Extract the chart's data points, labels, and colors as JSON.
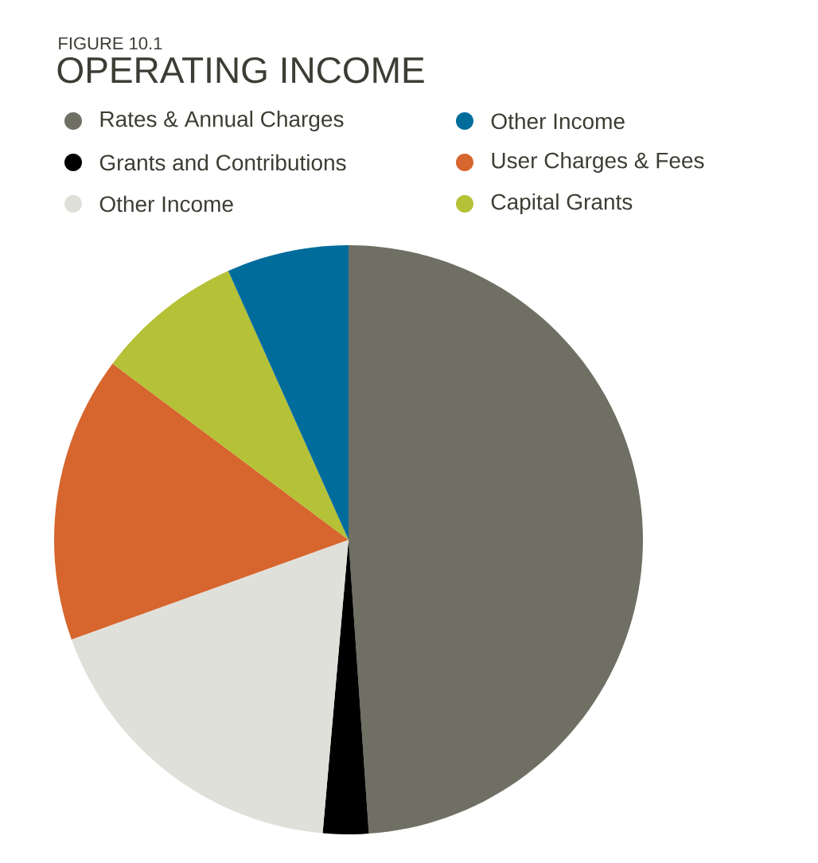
{
  "chart_data": {
    "type": "pie",
    "subtitle": "FIGURE 10.1",
    "title": "OPERATING INCOME",
    "categories": [
      "Rates & Annual Charges",
      "Grants and Contributions",
      "Other Income",
      "User Charges & Fees",
      "Capital Grants",
      "Other Income"
    ],
    "values": [
      48.9,
      2.5,
      18.1,
      15.7,
      8.1,
      6.7
    ],
    "colors": [
      "#6f6f63",
      "#000000",
      "#e0e0da",
      "#d6652e",
      "#b5c136",
      "#006c9c"
    ],
    "legend": "top"
  }
}
